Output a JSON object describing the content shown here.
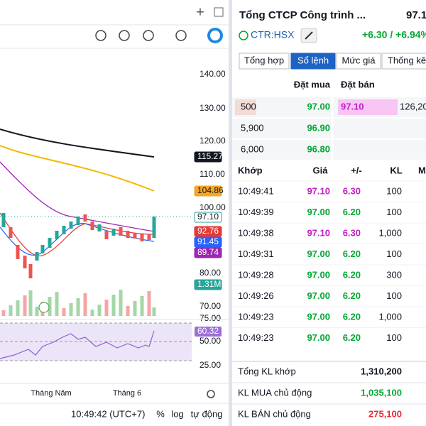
{
  "chart_panel": {
    "price_axis": [
      "140.00",
      "130.00",
      "120.00",
      "110.00",
      "100.00",
      "80.00",
      "70.00"
    ],
    "tags": [
      {
        "label": "115.27",
        "color": "#131722",
        "text_color": "#ffffff"
      },
      {
        "label": "104.86",
        "color": "#f5a623",
        "text_color": "#131722"
      },
      {
        "label": "97.10",
        "color": "#ffffff",
        "text_color": "#131722"
      },
      {
        "label": "92.76",
        "color": "#e53935",
        "text_color": "#ffffff"
      },
      {
        "label": "91.45",
        "color": "#2962ff",
        "text_color": "#ffffff"
      },
      {
        "label": "89.74",
        "color": "#9c27b0",
        "text_color": "#ffffff"
      },
      {
        "label": "1.31M",
        "color": "#26a69a",
        "text_color": "#ffffff"
      }
    ],
    "rsi_axis": [
      "75.00",
      "50.00",
      "25.00"
    ],
    "rsi_tag": {
      "label": "60.32",
      "color": "#9c6fd6"
    },
    "x_labels": [
      "Tháng Năm",
      "Tháng 6"
    ],
    "bottom_bar": {
      "time": "10:49:42 (UTC+7)",
      "options": [
        "%",
        "log",
        "tự động"
      ]
    }
  },
  "quote": {
    "title": "Tổng CTCP Công trình ...",
    "price": "97.1",
    "symbol": "CTR:HSX",
    "change": "+6.30 / +6.94%"
  },
  "tabs": [
    "Tổng hợp",
    "Sổ lệnh",
    "Mức giá",
    "Thống kê"
  ],
  "active_tab": 1,
  "order_book": {
    "headers": [
      "Đặt mua",
      "Đặt bán"
    ],
    "rows": [
      {
        "bid_volume": "500",
        "bid_price": "97.00",
        "ask_price": "97.10",
        "ask_volume": "126,20"
      },
      {
        "bid_volume": "5,900",
        "bid_price": "96.90"
      },
      {
        "bid_volume": "6,000",
        "bid_price": "96.80"
      }
    ]
  },
  "trades": {
    "headers": [
      "Khớp",
      "Giá",
      "+/-",
      "KL",
      "M"
    ],
    "rows": [
      {
        "time": "10:49:41",
        "price": "97.10",
        "change": "6.30",
        "volume": "100",
        "tone": "ceiling"
      },
      {
        "time": "10:49:39",
        "price": "97.00",
        "change": "6.20",
        "volume": "100",
        "tone": "up"
      },
      {
        "time": "10:49:38",
        "price": "97.10",
        "change": "6.30",
        "volume": "1,000",
        "tone": "ceiling"
      },
      {
        "time": "10:49:31",
        "price": "97.00",
        "change": "6.20",
        "volume": "100",
        "tone": "up"
      },
      {
        "time": "10:49:28",
        "price": "97.00",
        "change": "6.20",
        "volume": "300",
        "tone": "up"
      },
      {
        "time": "10:49:26",
        "price": "97.00",
        "change": "6.20",
        "volume": "100",
        "tone": "up"
      },
      {
        "time": "10:49:23",
        "price": "97.00",
        "change": "6.20",
        "volume": "1,000",
        "tone": "up"
      },
      {
        "time": "10:49:23",
        "price": "97.00",
        "change": "6.20",
        "volume": "100",
        "tone": "up"
      }
    ]
  },
  "summary": [
    {
      "label": "Tổng KL khớp",
      "value": "1,310,200",
      "tone": "plain"
    },
    {
      "label": "KL MUA chủ động",
      "value": "1,035,100",
      "tone": "up"
    },
    {
      "label": "KL BÁN chủ động",
      "value": "275,100",
      "tone": "down"
    }
  ]
}
